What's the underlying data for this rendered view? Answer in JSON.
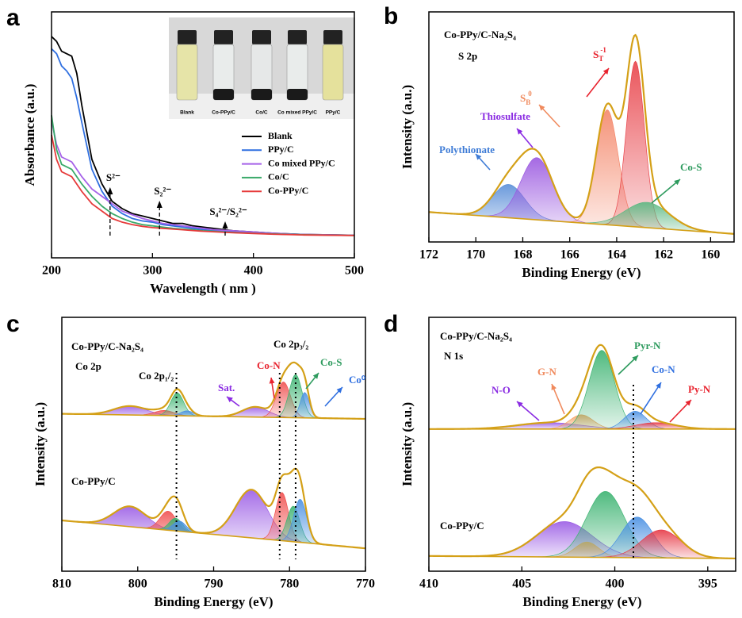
{
  "chart_data": [
    {
      "type": "line",
      "panel_label": "a",
      "xlabel": "Wavelength ( nm )",
      "ylabel": "Absorbance (a.u.)",
      "xlim": [
        200,
        500
      ],
      "xticks": [
        200,
        300,
        400,
        500
      ],
      "ylim": [
        0,
        100
      ],
      "x": [
        200,
        205,
        210,
        215,
        220,
        225,
        230,
        240,
        250,
        260,
        270,
        280,
        290,
        300,
        310,
        320,
        330,
        340,
        350,
        360,
        370,
        380,
        400,
        420,
        450,
        500
      ],
      "series": [
        {
          "name": "Blank",
          "color": "#000000",
          "values": [
            90,
            88,
            84,
            83,
            82,
            75,
            62,
            40,
            30,
            23,
            20,
            18,
            17,
            16,
            15,
            14,
            14,
            13,
            12.5,
            12,
            11.5,
            11,
            10.5,
            10,
            9.5,
            9.2
          ]
        },
        {
          "name": "PPy/C",
          "color": "#2f6fe0",
          "values": [
            85,
            83,
            78,
            76,
            73,
            65,
            55,
            36,
            27,
            21,
            18,
            16,
            15,
            14.5,
            13.5,
            13,
            12.5,
            12,
            11.5,
            11,
            11,
            10.5,
            10,
            9.8,
            9.4,
            9.2
          ]
        },
        {
          "name": "Co mixed PPy/C",
          "color": "#a561e8",
          "values": [
            56,
            46,
            41,
            40,
            39,
            36,
            33,
            28,
            25,
            22,
            19,
            17.5,
            16,
            15,
            14,
            13.5,
            13,
            12.5,
            12,
            11.5,
            11.2,
            11,
            10.5,
            10,
            9.5,
            9.2
          ]
        },
        {
          "name": "Co/C",
          "color": "#3aaa6a",
          "values": [
            58,
            44,
            38,
            37,
            36,
            33,
            30,
            25,
            21,
            18,
            16,
            14.5,
            13.5,
            13,
            12.5,
            12,
            11.7,
            11.4,
            11,
            10.8,
            10.5,
            10.3,
            10,
            9.7,
            9.4,
            9.1
          ]
        },
        {
          "name": "Co-PPy/C",
          "color": "#e63a3a",
          "values": [
            50,
            40,
            35,
            34,
            33,
            30,
            27,
            22,
            19,
            16,
            14.5,
            13.5,
            12.8,
            12.3,
            12,
            11.7,
            11.4,
            11.1,
            10.8,
            10.6,
            10.4,
            10.2,
            9.9,
            9.6,
            9.3,
            9.1
          ]
        }
      ],
      "markers": [
        {
          "x": 258,
          "label": "S²⁻"
        },
        {
          "x": 307,
          "label": "S₂²⁻"
        },
        {
          "x": 372,
          "label": "S₄²⁻/S₂²⁻"
        }
      ],
      "inset_labels": [
        "Blank",
        "Co-PPy/C",
        "Co/C",
        "Co mixed PPy/C",
        "PPy/C"
      ]
    },
    {
      "type": "peak-fit",
      "panel_label": "b",
      "xlabel": "Binding Energy (eV)",
      "ylabel": "Intensity (a.u.)",
      "xlim": [
        172,
        159
      ],
      "xticks": [
        172,
        170,
        168,
        166,
        164,
        162,
        160
      ],
      "ylim": [
        0,
        100
      ],
      "envelope_color": "#d4a017",
      "spectra": [
        {
          "background": [
            13,
            3.5
          ],
          "components": [
            {
              "center": 168.6,
              "height": 14.5,
              "fwhm": 1.6,
              "color": "#5b8fd8"
            },
            {
              "center": 167.4,
              "height": 27,
              "fwhm": 1.6,
              "color": "#9b59e0"
            },
            {
              "center": 164.4,
              "height": 50,
              "fwhm": 1.1,
              "color": "#f4876a"
            },
            {
              "center": 163.2,
              "height": 72,
              "fwhm": 0.9,
              "color": "#e8434a"
            },
            {
              "center": 162.7,
              "height": 11,
              "fwhm": 2.2,
              "color": "#5cb882"
            }
          ]
        }
      ],
      "annotations": [
        {
          "text": "Co-PPy/C-Na₂S₄",
          "color": "#000000"
        },
        {
          "text": "S 2p",
          "color": "#000000"
        },
        {
          "text": "Polythionate",
          "color": "#3d7bd6"
        },
        {
          "text": "Thiosulfate",
          "color": "#8a2be2"
        },
        {
          "text": "S",
          "sub": "B",
          "sup": "0",
          "color": "#f08a5d"
        },
        {
          "text": "S",
          "sub": "T",
          "sup": "-1",
          "color": "#e8232e"
        },
        {
          "text": "Co-S",
          "color": "#2e9b5e"
        }
      ]
    },
    {
      "type": "peak-fit",
      "panel_label": "c",
      "xlabel": "Binding Energy (eV)",
      "ylabel": "Intensity (a.u.)",
      "xlim": [
        810,
        770
      ],
      "xticks": [
        810,
        800,
        790,
        780,
        770
      ],
      "ylim": [
        0,
        100
      ],
      "envelope_color": "#d4a017",
      "spectra": [
        {
          "background": [
            62,
            60
          ],
          "components": [
            {
              "center": 801,
              "height": 3.5,
              "fwhm": 5,
              "color": "#9b5de5"
            },
            {
              "center": 796.5,
              "height": 2,
              "fwhm": 3,
              "color": "#f0504f"
            },
            {
              "center": 794.8,
              "height": 9,
              "fwhm": 2,
              "color": "#3cb371"
            },
            {
              "center": 793.5,
              "height": 2,
              "fwhm": 2,
              "color": "#4a90e2"
            },
            {
              "center": 784.5,
              "height": 4,
              "fwhm": 4,
              "color": "#9b5de5"
            },
            {
              "center": 780.8,
              "height": 14,
              "fwhm": 2.2,
              "color": "#f0504f"
            },
            {
              "center": 779.2,
              "height": 17,
              "fwhm": 2,
              "color": "#3cb371"
            },
            {
              "center": 778,
              "height": 10,
              "fwhm": 1.4,
              "color": "#4a90e2"
            }
          ]
        },
        {
          "background": [
            20,
            9
          ],
          "components": [
            {
              "center": 801,
              "height": 8,
              "fwhm": 5,
              "color": "#9b5de5"
            },
            {
              "center": 796,
              "height": 7.5,
              "fwhm": 2.5,
              "color": "#f0504f"
            },
            {
              "center": 795,
              "height": 5,
              "fwhm": 2,
              "color": "#3cb371"
            },
            {
              "center": 794.5,
              "height": 4,
              "fwhm": 2,
              "color": "#4a90e2"
            },
            {
              "center": 785,
              "height": 19,
              "fwhm": 5,
              "color": "#9b5de5"
            },
            {
              "center": 781,
              "height": 19,
              "fwhm": 2,
              "color": "#f0504f"
            },
            {
              "center": 779.5,
              "height": 14,
              "fwhm": 2,
              "color": "#3cb371"
            },
            {
              "center": 778.6,
              "height": 17,
              "fwhm": 2,
              "color": "#4a90e2"
            }
          ]
        }
      ],
      "guides": [
        794.9,
        781.3,
        779.2
      ],
      "annotations": [
        {
          "text": "Co-PPy/C-Na₂S₄",
          "color": "#000000"
        },
        {
          "text": "Co 2p",
          "color": "#000000"
        },
        {
          "text": "Co 2p₁/₂",
          "color": "#000000"
        },
        {
          "text": "Co 2p₃/₂",
          "color": "#000000"
        },
        {
          "text": "Sat.",
          "color": "#8a2be2"
        },
        {
          "text": "Co-N",
          "color": "#e8232e"
        },
        {
          "text": "Co-S",
          "color": "#2e9b5e"
        },
        {
          "text": "Co⁰",
          "color": "#2f6fe0"
        },
        {
          "text": "Co-PPy/C",
          "color": "#000000"
        }
      ]
    },
    {
      "type": "peak-fit",
      "panel_label": "d",
      "xlabel": "Binding Energy (eV)",
      "ylabel": "Intensity (a.u.)",
      "xlim": [
        410,
        393.5
      ],
      "xticks": [
        410,
        405,
        400,
        395
      ],
      "ylim": [
        0,
        100
      ],
      "envelope_color": "#d4a017",
      "spectra": [
        {
          "background": [
            56,
            56
          ],
          "components": [
            {
              "center": 403.5,
              "height": 2.5,
              "fwhm": 4,
              "color": "#9b5de5"
            },
            {
              "center": 401.8,
              "height": 5.6,
              "fwhm": 1.5,
              "color": "#f4a261"
            },
            {
              "center": 400.7,
              "height": 31,
              "fwhm": 1.6,
              "color": "#3cb371"
            },
            {
              "center": 398.9,
              "height": 7,
              "fwhm": 1.4,
              "color": "#4a90e2"
            },
            {
              "center": 397.8,
              "height": 2.5,
              "fwhm": 2.5,
              "color": "#e63946"
            }
          ]
        },
        {
          "background": [
            6,
            5
          ],
          "components": [
            {
              "center": 402.7,
              "height": 14,
              "fwhm": 3.5,
              "color": "#9b5de5"
            },
            {
              "center": 401.5,
              "height": 6,
              "fwhm": 1.5,
              "color": "#f4a261"
            },
            {
              "center": 400.5,
              "height": 26,
              "fwhm": 2.4,
              "color": "#3cb371"
            },
            {
              "center": 398.8,
              "height": 16,
              "fwhm": 2,
              "color": "#4a90e2"
            },
            {
              "center": 397.5,
              "height": 11,
              "fwhm": 2.5,
              "color": "#e63946"
            }
          ]
        }
      ],
      "guides": [
        399.0
      ],
      "annotations": [
        {
          "text": "Co-PPy/C-Na₂S₄",
          "color": "#000000"
        },
        {
          "text": "N 1s",
          "color": "#000000"
        },
        {
          "text": "N-O",
          "color": "#8a2be2"
        },
        {
          "text": "G-N",
          "color": "#f08a5d"
        },
        {
          "text": "Pyr-N",
          "color": "#2e9b5e"
        },
        {
          "text": "Co-N",
          "color": "#2f6fe0"
        },
        {
          "text": "Py-N",
          "color": "#e8232e"
        },
        {
          "text": "Co-PPy/C",
          "color": "#000000"
        }
      ]
    }
  ]
}
